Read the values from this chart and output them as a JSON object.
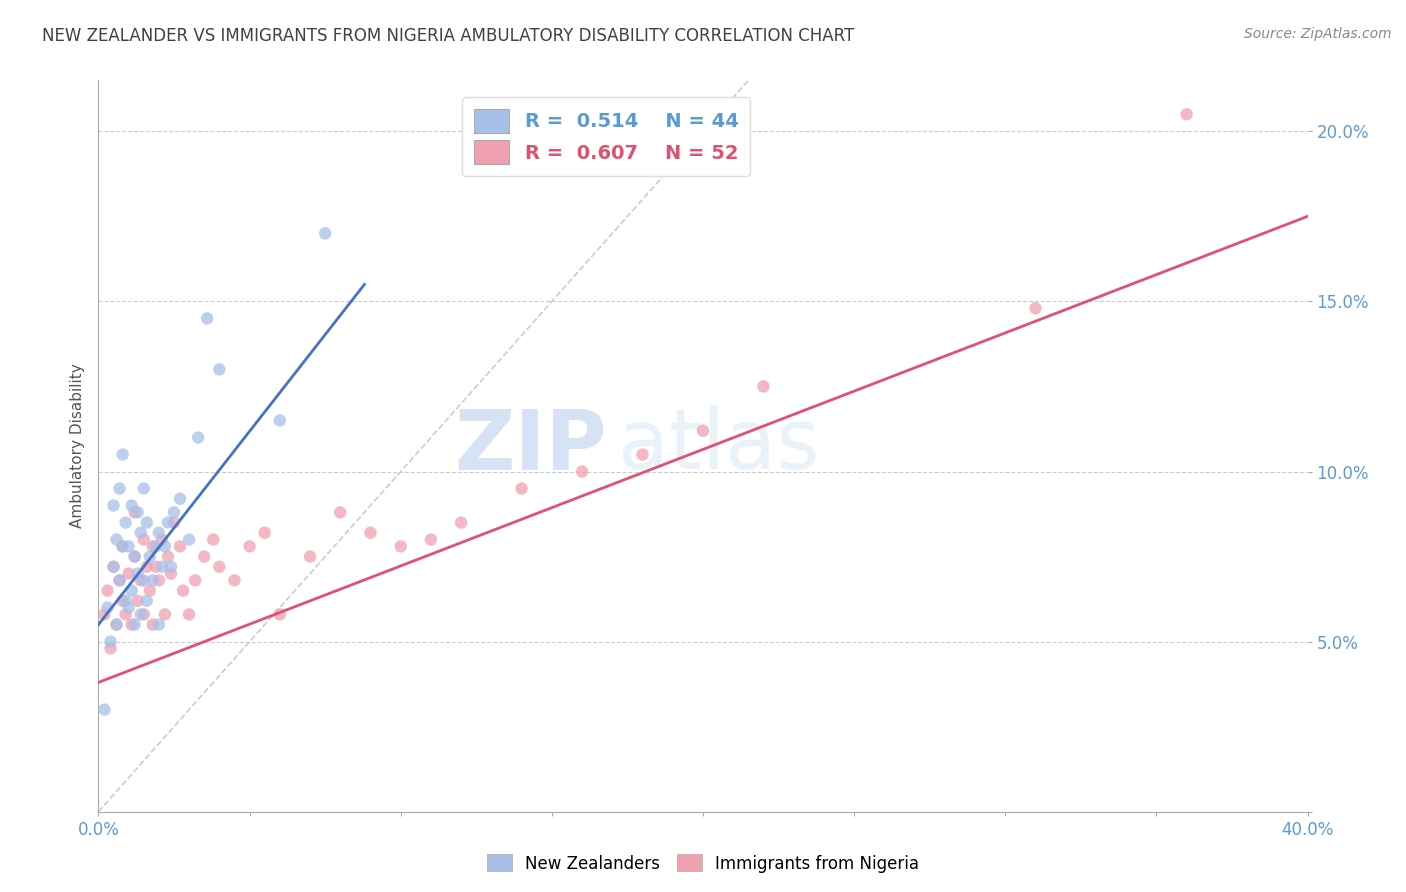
{
  "title": "NEW ZEALANDER VS IMMIGRANTS FROM NIGERIA AMBULATORY DISABILITY CORRELATION CHART",
  "source": "Source: ZipAtlas.com",
  "ylabel": "Ambulatory Disability",
  "x_min": 0.0,
  "x_max": 0.4,
  "y_min": 0.0,
  "y_max": 0.215,
  "y_ticks": [
    0.0,
    0.05,
    0.1,
    0.15,
    0.2
  ],
  "y_tick_labels": [
    "",
    "5.0%",
    "10.0%",
    "15.0%",
    "20.0%"
  ],
  "watermark_zip": "ZIP",
  "watermark_atlas": "atlas",
  "legend_blue_r": "R = 0.514",
  "legend_blue_n": "N = 44",
  "legend_pink_r": "R = 0.607",
  "legend_pink_n": "N = 52",
  "blue_color": "#A8C0E8",
  "pink_color": "#F0A0B0",
  "blue_line_color": "#4472C4",
  "pink_line_color": "#E05070",
  "diag_line_color": "#AAAAAA",
  "title_color": "#404040",
  "axis_label_color": "#5B9BD5",
  "grid_color": "#CCCCCC",
  "nz_scatter_x": [
    0.002,
    0.003,
    0.004,
    0.005,
    0.005,
    0.006,
    0.006,
    0.007,
    0.007,
    0.008,
    0.008,
    0.009,
    0.009,
    0.01,
    0.01,
    0.011,
    0.011,
    0.012,
    0.012,
    0.013,
    0.013,
    0.014,
    0.014,
    0.015,
    0.015,
    0.016,
    0.016,
    0.017,
    0.018,
    0.019,
    0.02,
    0.02,
    0.021,
    0.022,
    0.023,
    0.024,
    0.025,
    0.027,
    0.03,
    0.033,
    0.036,
    0.04,
    0.06,
    0.075
  ],
  "nz_scatter_y": [
    0.03,
    0.06,
    0.05,
    0.072,
    0.09,
    0.055,
    0.08,
    0.068,
    0.095,
    0.078,
    0.105,
    0.062,
    0.085,
    0.06,
    0.078,
    0.065,
    0.09,
    0.055,
    0.075,
    0.07,
    0.088,
    0.058,
    0.082,
    0.068,
    0.095,
    0.062,
    0.085,
    0.075,
    0.068,
    0.078,
    0.055,
    0.082,
    0.072,
    0.078,
    0.085,
    0.072,
    0.088,
    0.092,
    0.08,
    0.11,
    0.145,
    0.13,
    0.115,
    0.17
  ],
  "ng_scatter_x": [
    0.002,
    0.003,
    0.004,
    0.005,
    0.006,
    0.007,
    0.008,
    0.008,
    0.009,
    0.01,
    0.011,
    0.012,
    0.012,
    0.013,
    0.014,
    0.015,
    0.015,
    0.016,
    0.017,
    0.018,
    0.018,
    0.019,
    0.02,
    0.021,
    0.022,
    0.023,
    0.024,
    0.025,
    0.027,
    0.028,
    0.03,
    0.032,
    0.035,
    0.038,
    0.04,
    0.045,
    0.05,
    0.055,
    0.06,
    0.07,
    0.08,
    0.09,
    0.1,
    0.11,
    0.12,
    0.14,
    0.16,
    0.18,
    0.2,
    0.22,
    0.31,
    0.36
  ],
  "ng_scatter_y": [
    0.058,
    0.065,
    0.048,
    0.072,
    0.055,
    0.068,
    0.062,
    0.078,
    0.058,
    0.07,
    0.055,
    0.075,
    0.088,
    0.062,
    0.068,
    0.058,
    0.08,
    0.072,
    0.065,
    0.078,
    0.055,
    0.072,
    0.068,
    0.08,
    0.058,
    0.075,
    0.07,
    0.085,
    0.078,
    0.065,
    0.058,
    0.068,
    0.075,
    0.08,
    0.072,
    0.068,
    0.078,
    0.082,
    0.058,
    0.075,
    0.088,
    0.082,
    0.078,
    0.08,
    0.085,
    0.095,
    0.1,
    0.105,
    0.112,
    0.125,
    0.148,
    0.205
  ],
  "nz_trend_x": [
    0.0,
    0.088
  ],
  "nz_trend_y": [
    0.055,
    0.155
  ],
  "ng_trend_x": [
    0.0,
    0.4
  ],
  "ng_trend_y": [
    0.038,
    0.175
  ],
  "diag_trend_x": [
    0.0,
    0.215
  ],
  "diag_trend_y": [
    0.0,
    0.215
  ]
}
